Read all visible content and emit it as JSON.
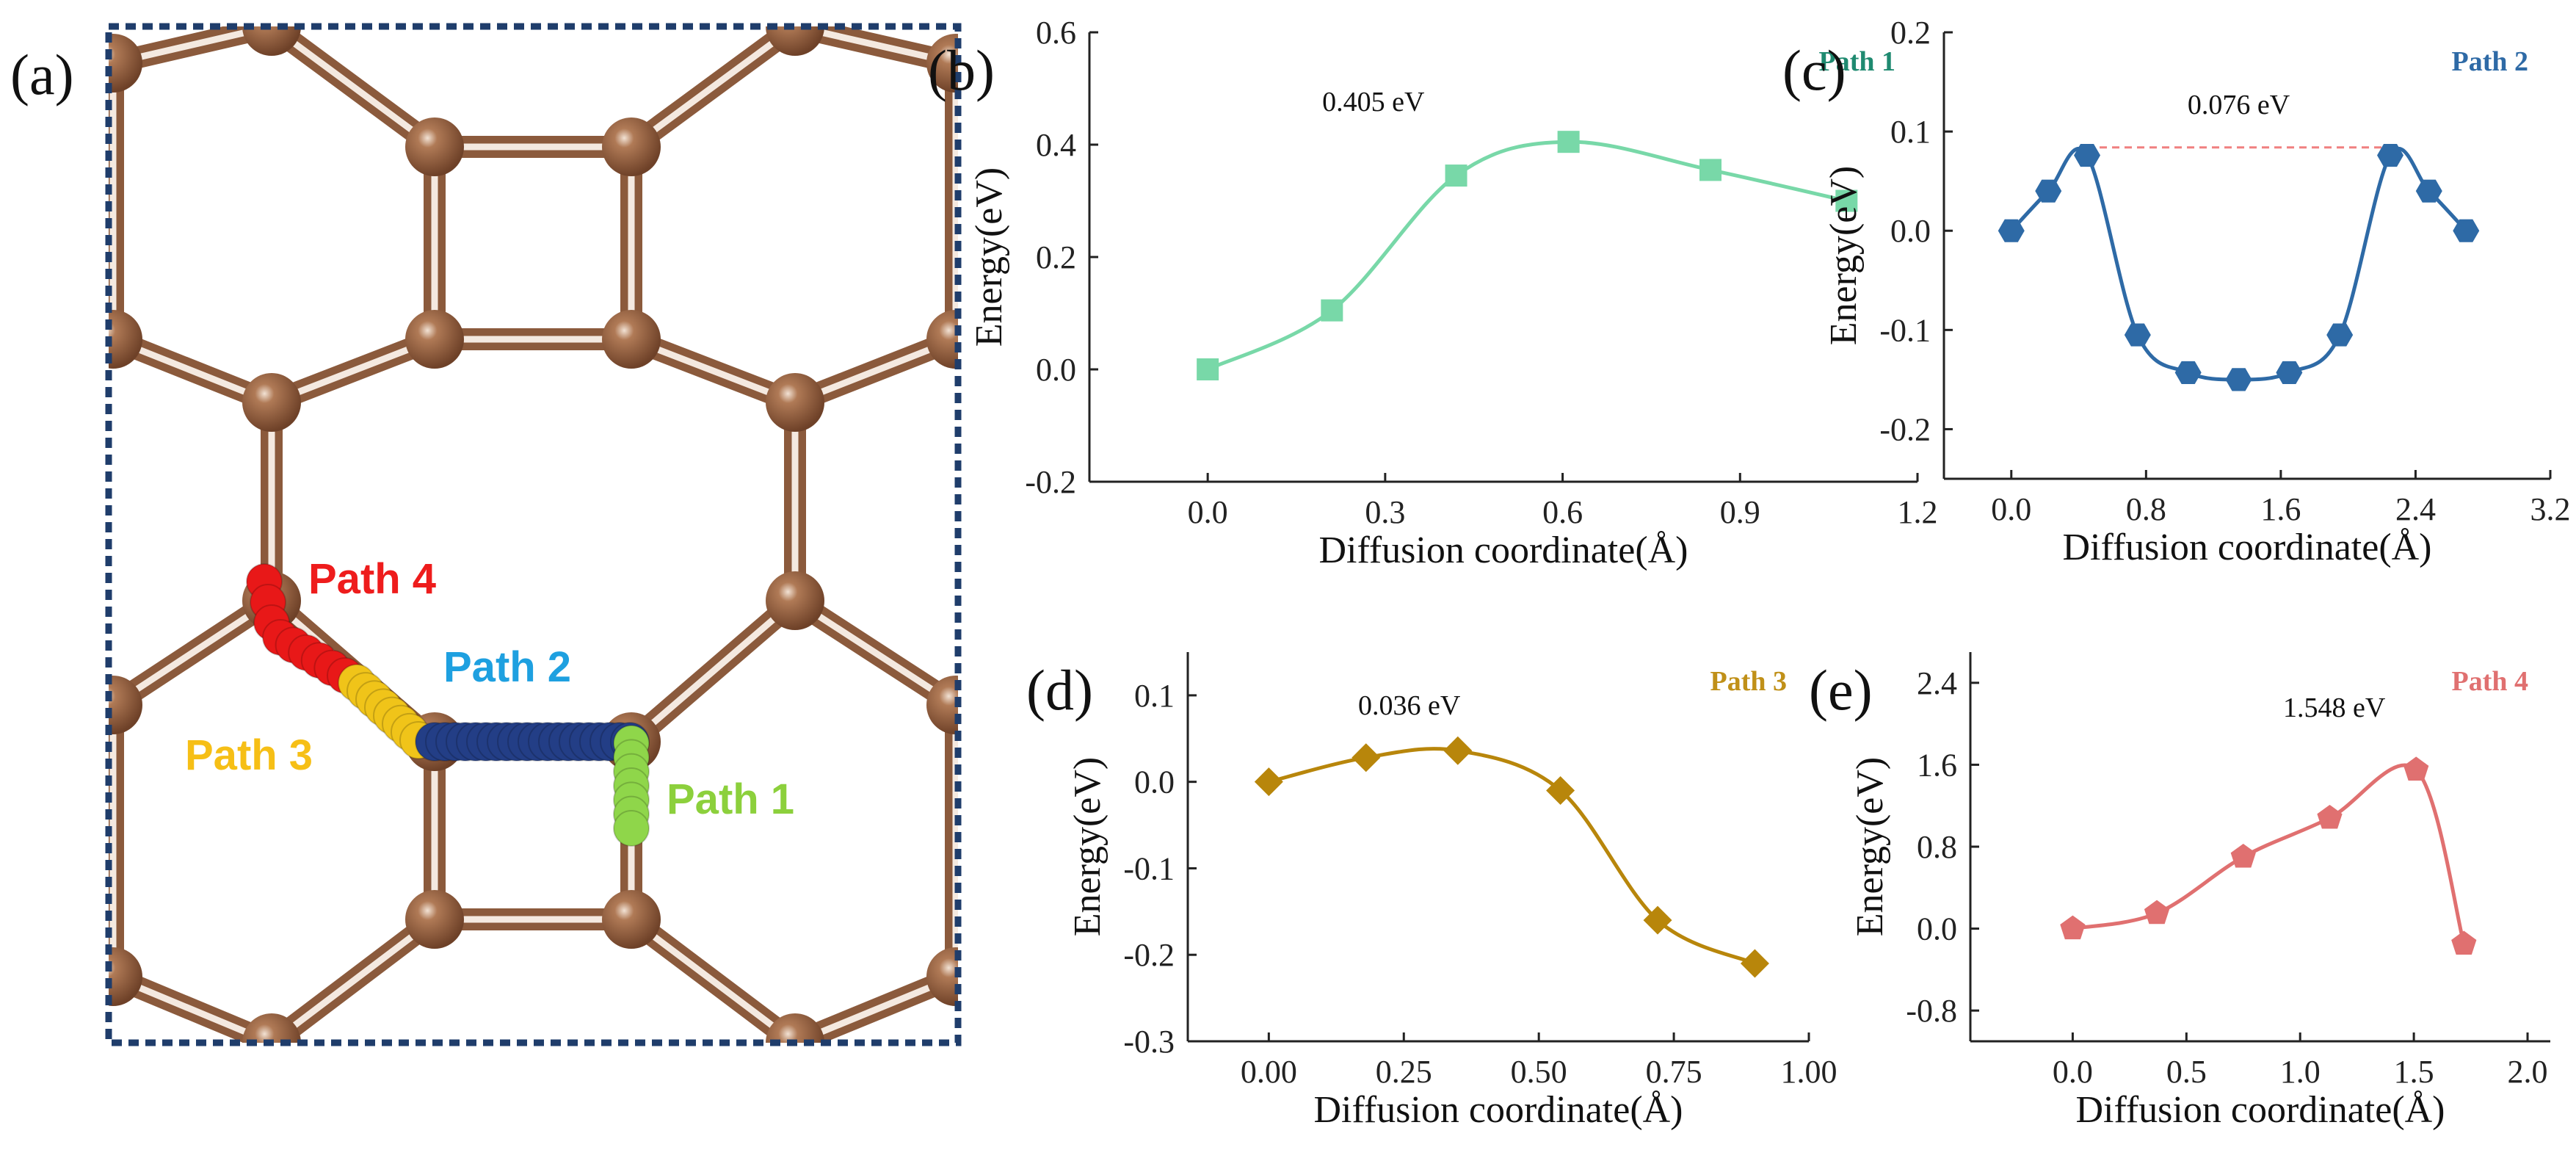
{
  "panel_a": {
    "label": "(a)",
    "paths": [
      {
        "name": "Path 1",
        "color": "#8cd03c"
      },
      {
        "name": "Path 2",
        "color": "#1ea0e0"
      },
      {
        "name": "Path 3",
        "color": "#f6bf16"
      },
      {
        "name": "Path 4",
        "color": "#ee1c1c"
      }
    ],
    "colors": {
      "atom": "#8b5a3c",
      "bond": "#8b5a3c",
      "frame": "#1f3d6b",
      "path2_beads": "#233e86",
      "path3_beads": "#f0c419",
      "path4_beads": "#e81818",
      "path1_beads": "#8fd64a"
    }
  },
  "chart_data": [
    {
      "id": "b",
      "panel_label": "(b)",
      "type": "line",
      "series_name": "Path 1",
      "color": "#78d8a8",
      "name_color": "#1f8a70",
      "marker": "square",
      "x": [
        0.0,
        0.21,
        0.42,
        0.61,
        0.85,
        1.08
      ],
      "y": [
        0.0,
        0.105,
        0.345,
        0.405,
        0.355,
        0.3
      ],
      "xlim": [
        -0.2,
        1.2
      ],
      "ylim": [
        -0.2,
        0.6
      ],
      "xticks": [
        "0.0",
        "0.3",
        "0.6",
        "0.9",
        "1.2"
      ],
      "xtick_values": [
        0.0,
        0.3,
        0.6,
        0.9,
        1.2
      ],
      "yticks": [
        "-0.2",
        "0.0",
        "0.2",
        "0.4",
        "0.6"
      ],
      "ytick_values": [
        -0.2,
        0.0,
        0.2,
        0.4,
        0.6
      ],
      "xlabel": "Diffusion coordinate(Å)",
      "ylabel": "Energy(eV)",
      "annotation": {
        "text": "0.405 eV",
        "x": 0.28,
        "y": 0.46
      }
    },
    {
      "id": "c",
      "panel_label": "(c)",
      "type": "line",
      "series_name": "Path 2",
      "color": "#2e6aa6",
      "name_color": "#2e6aa6",
      "marker": "hexagon",
      "x": [
        0.0,
        0.22,
        0.45,
        0.75,
        1.05,
        1.35,
        1.65,
        1.95,
        2.25,
        2.48,
        2.7
      ],
      "y": [
        0.0,
        0.04,
        0.076,
        -0.105,
        -0.143,
        -0.15,
        -0.143,
        -0.105,
        0.076,
        0.04,
        0.0
      ],
      "xlim": [
        -0.4,
        3.2
      ],
      "ylim": [
        -0.25,
        0.2
      ],
      "xticks": [
        "0.0",
        "0.8",
        "1.6",
        "2.4",
        "3.2"
      ],
      "xtick_values": [
        0.0,
        0.8,
        1.6,
        2.4,
        3.2
      ],
      "yticks": [
        "-0.2",
        "-0.1",
        "0.0",
        "0.1",
        "0.2"
      ],
      "ytick_values": [
        -0.2,
        -0.1,
        0.0,
        0.1,
        0.2
      ],
      "xlabel": "Diffusion coordinate(Å)",
      "ylabel": "Energy(eV)",
      "annotation": {
        "text": "0.076 eV",
        "x": 1.35,
        "y": 0.118
      },
      "dashed_line": {
        "x1": 0.45,
        "x2": 2.25,
        "y": 0.084,
        "color": "#f08080"
      }
    },
    {
      "id": "d",
      "panel_label": "(d)",
      "type": "line",
      "series_name": "Path 3",
      "color": "#b8860b",
      "name_color": "#c09018",
      "marker": "diamond",
      "x": [
        0.0,
        0.18,
        0.35,
        0.54,
        0.72,
        0.9
      ],
      "y": [
        0.0,
        0.028,
        0.036,
        -0.01,
        -0.16,
        -0.21
      ],
      "xlim": [
        -0.15,
        1.0
      ],
      "ylim": [
        -0.3,
        0.15
      ],
      "xticks": [
        "0.00",
        "0.25",
        "0.50",
        "0.75",
        "1.00"
      ],
      "xtick_values": [
        0.0,
        0.25,
        0.5,
        0.75,
        1.0
      ],
      "yticks": [
        "-0.3",
        "-0.2",
        "-0.1",
        "0.0",
        "0.1"
      ],
      "ytick_values": [
        -0.3,
        -0.2,
        -0.1,
        0.0,
        0.1
      ],
      "xlabel": "Diffusion coordinate(Å)",
      "ylabel": "Energy(eV)",
      "annotation": {
        "text": "0.036 eV",
        "x": 0.26,
        "y": 0.078
      }
    },
    {
      "id": "e",
      "panel_label": "(e)",
      "type": "line",
      "series_name": "Path 4",
      "color": "#e07070",
      "name_color": "#e07070",
      "marker": "pentagon",
      "x": [
        0.0,
        0.37,
        0.75,
        1.13,
        1.51,
        1.72
      ],
      "y": [
        0.0,
        0.15,
        0.7,
        1.08,
        1.55,
        -0.15
      ],
      "xlim": [
        -0.45,
        2.1
      ],
      "ylim": [
        -1.1,
        2.7
      ],
      "xticks": [
        "0.0",
        "0.5",
        "1.0",
        "1.5",
        "2.0"
      ],
      "xtick_values": [
        0.0,
        0.5,
        1.0,
        1.5,
        2.0
      ],
      "yticks": [
        "-0.8",
        "0.0",
        "0.8",
        "1.6",
        "2.4"
      ],
      "ytick_values": [
        -0.8,
        0.0,
        0.8,
        1.6,
        2.4
      ],
      "xlabel": "Diffusion coordinate(Å)",
      "ylabel": "Energy(eV)",
      "annotation": {
        "text": "1.548 eV",
        "x": 1.15,
        "y": 2.07
      }
    }
  ]
}
